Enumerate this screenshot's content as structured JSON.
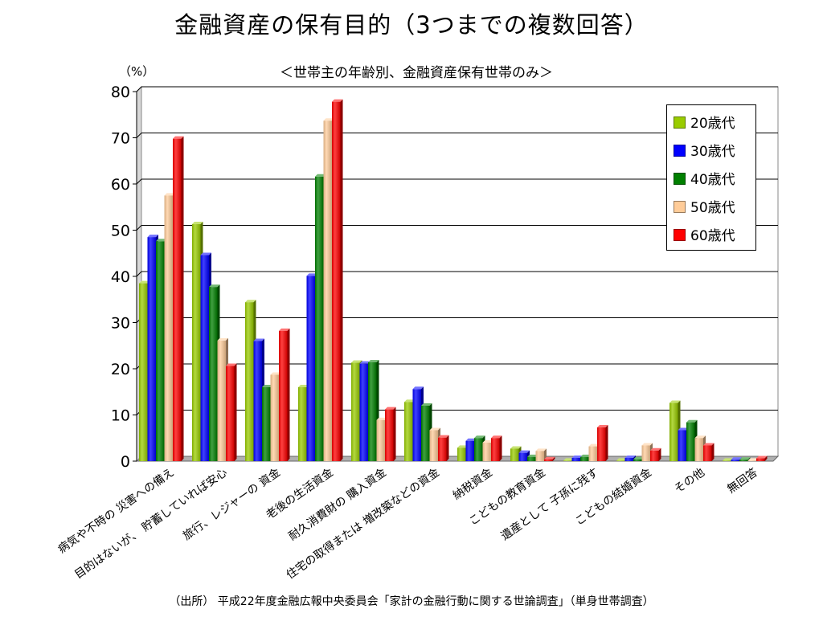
{
  "title": "金融資産の保有目的（3つまでの複数回答）",
  "unit_label": "（%）",
  "source_note": "（出所） 平成22年度金融広報中央委員会「家計の金融行動に関する世論調査」（単身世帯調査）",
  "chart_data": {
    "type": "bar",
    "title": "",
    "subtitle": "＜世帯主の年齢別、金融資産保有世帯のみ＞",
    "ylabel": "（%）",
    "xlabel": "",
    "ylim": [
      0,
      80
    ],
    "yticks": [
      0,
      10,
      20,
      30,
      40,
      50,
      60,
      70,
      80
    ],
    "grid": true,
    "legend_position": "top-right",
    "categories": [
      "病気や不時の 災害への備え",
      "目的はないが、 貯蓄していれば安心",
      "旅行、レジャーの 資金",
      "老後の生活資金",
      "耐久消費財の 購入資金",
      "住宅の取得または 増改築などの資金",
      "納税資金",
      "こどもの教育資金",
      "遺産として 子孫に残す",
      "こどもの結婚資金",
      "その他",
      "無回答"
    ],
    "series": [
      {
        "name": "20歳代",
        "color": "#99cc00",
        "values": [
          38.5,
          51.3,
          34.4,
          16.0,
          21.3,
          12.8,
          2.9,
          2.7,
          0.0,
          0.0,
          12.6,
          0.0
        ]
      },
      {
        "name": "30歳代",
        "color": "#0000ff",
        "values": [
          48.5,
          44.6,
          26.0,
          40.1,
          21.1,
          15.6,
          4.4,
          1.8,
          0.7,
          0.7,
          6.7,
          0.3
        ]
      },
      {
        "name": "40歳代",
        "color": "#008000",
        "values": [
          47.6,
          37.7,
          16.0,
          61.6,
          21.4,
          12.0,
          5.0,
          0.9,
          0.9,
          0.4,
          8.4,
          0.3
        ]
      },
      {
        "name": "50歳代",
        "color": "#ffcc99",
        "values": [
          57.5,
          26.1,
          18.7,
          73.7,
          8.9,
          6.7,
          4.0,
          2.2,
          3.2,
          3.4,
          5.0,
          0.0
        ]
      },
      {
        "name": "60歳代",
        "color": "#ff0000",
        "values": [
          69.8,
          20.6,
          28.2,
          77.8,
          11.2,
          5.1,
          5.0,
          0.4,
          7.3,
          2.3,
          3.4,
          0.6
        ]
      }
    ]
  }
}
